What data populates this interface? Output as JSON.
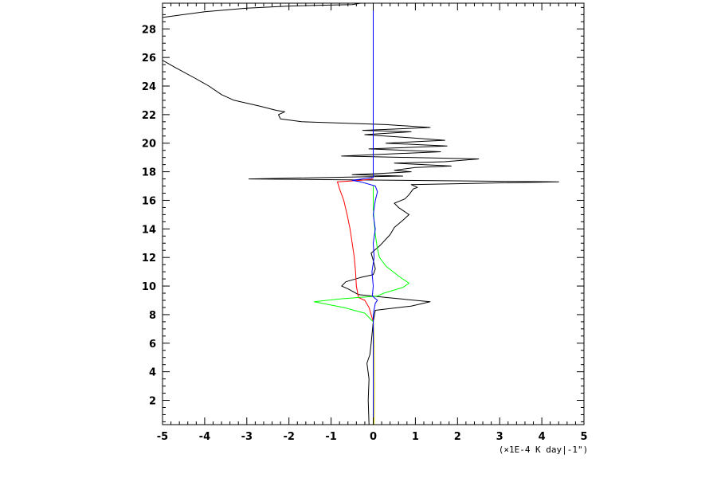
{
  "chart_data": {
    "type": "line",
    "title": "",
    "xlabel": "(×1E-4 K day|-1\")",
    "ylabel": "",
    "xlim": [
      -5,
      5
    ],
    "ylim": [
      0.3,
      29.8
    ],
    "x_ticks": [
      -5,
      -4,
      -3,
      -2,
      -1,
      0,
      1,
      2,
      3,
      4,
      5
    ],
    "y_ticks": [
      2,
      4,
      6,
      8,
      10,
      12,
      14,
      16,
      18,
      20,
      22,
      24,
      26,
      28
    ],
    "grid": false,
    "legend": "none",
    "series": [
      {
        "color": "#000000",
        "points": [
          [
            -0.1,
            0.3
          ],
          [
            -0.12,
            2.0
          ],
          [
            -0.1,
            3.5
          ],
          [
            -0.15,
            4.6
          ],
          [
            -0.08,
            5.2
          ],
          [
            -0.05,
            6.0
          ],
          [
            0.0,
            7.5
          ],
          [
            0.05,
            8.3
          ],
          [
            0.9,
            8.6
          ],
          [
            1.35,
            8.9
          ],
          [
            0.3,
            9.2
          ],
          [
            -0.35,
            9.4
          ],
          [
            -0.6,
            9.8
          ],
          [
            -0.75,
            10.0
          ],
          [
            -0.65,
            10.3
          ],
          [
            -0.3,
            10.6
          ],
          [
            0.0,
            10.8
          ],
          [
            0.05,
            11.2
          ],
          [
            0.0,
            11.8
          ],
          [
            -0.05,
            12.3
          ],
          [
            0.15,
            12.8
          ],
          [
            0.4,
            13.6
          ],
          [
            0.5,
            14.1
          ],
          [
            0.7,
            14.6
          ],
          [
            0.85,
            15.0
          ],
          [
            0.6,
            15.5
          ],
          [
            0.5,
            15.8
          ],
          [
            0.75,
            16.1
          ],
          [
            0.85,
            16.4
          ],
          [
            0.95,
            16.8
          ],
          [
            1.05,
            16.9
          ],
          [
            0.9,
            17.1
          ],
          [
            4.4,
            17.3
          ],
          [
            -2.95,
            17.5
          ],
          [
            0.7,
            17.7
          ],
          [
            -0.5,
            17.8
          ],
          [
            0.3,
            17.9
          ],
          [
            0.9,
            18.0
          ],
          [
            0.5,
            18.1
          ],
          [
            1.0,
            18.3
          ],
          [
            1.85,
            18.4
          ],
          [
            0.5,
            18.6
          ],
          [
            1.7,
            18.7
          ],
          [
            2.5,
            18.9
          ],
          [
            -0.75,
            19.1
          ],
          [
            1.6,
            19.4
          ],
          [
            -0.1,
            19.6
          ],
          [
            1.75,
            19.8
          ],
          [
            0.3,
            20.0
          ],
          [
            1.7,
            20.2
          ],
          [
            0.8,
            20.4
          ],
          [
            -0.2,
            20.6
          ],
          [
            0.9,
            20.8
          ],
          [
            -0.25,
            20.9
          ],
          [
            1.35,
            21.1
          ],
          [
            0.3,
            21.3
          ],
          [
            -1.7,
            21.5
          ],
          [
            -2.2,
            21.7
          ],
          [
            -2.25,
            22.0
          ],
          [
            -2.1,
            22.2
          ],
          [
            -2.3,
            22.3
          ],
          [
            -2.7,
            22.6
          ],
          [
            -3.3,
            23.0
          ],
          [
            -3.6,
            23.4
          ],
          [
            -3.9,
            24.0
          ],
          [
            -4.2,
            24.5
          ],
          [
            -4.7,
            25.3
          ],
          [
            -5.0,
            25.8
          ]
        ]
      },
      {
        "color": "#000000",
        "points": [
          [
            -5.0,
            28.8
          ],
          [
            -4.0,
            29.2
          ],
          [
            -3.0,
            29.45
          ],
          [
            -2.0,
            29.6
          ],
          [
            -0.5,
            29.7
          ],
          [
            -0.3,
            29.8
          ]
        ]
      },
      {
        "color": "#ff0000",
        "points": [
          [
            0.0,
            7.5
          ],
          [
            -0.1,
            8.5
          ],
          [
            -0.2,
            9.0
          ],
          [
            -0.35,
            9.2
          ],
          [
            -0.4,
            10.0
          ],
          [
            -0.42,
            11.0
          ],
          [
            -0.45,
            12.0
          ],
          [
            -0.5,
            13.0
          ],
          [
            -0.55,
            14.0
          ],
          [
            -0.62,
            15.0
          ],
          [
            -0.7,
            16.0
          ],
          [
            -0.8,
            16.8
          ],
          [
            -0.85,
            17.3
          ],
          [
            -0.55,
            17.35
          ],
          [
            -0.3,
            17.4
          ],
          [
            0.0,
            17.5
          ]
        ]
      },
      {
        "color": "#00ff00",
        "points": [
          [
            0.0,
            0.3
          ],
          [
            0.0,
            5.0
          ],
          [
            0.0,
            7.5
          ],
          [
            -0.2,
            8.1
          ],
          [
            -0.7,
            8.5
          ],
          [
            -1.4,
            8.9
          ],
          [
            -0.8,
            9.1
          ],
          [
            0.1,
            9.3
          ],
          [
            0.25,
            9.5
          ],
          [
            0.7,
            9.9
          ],
          [
            0.85,
            10.2
          ],
          [
            0.6,
            10.7
          ],
          [
            0.3,
            11.4
          ],
          [
            0.15,
            12.0
          ],
          [
            0.1,
            12.6
          ],
          [
            0.05,
            13.6
          ],
          [
            0.02,
            14.5
          ],
          [
            0.0,
            15.5
          ],
          [
            0.0,
            17.0
          ]
        ]
      },
      {
        "color": "#c8c800",
        "points": [
          [
            0.02,
            0.3
          ],
          [
            0.03,
            3.0
          ],
          [
            0.02,
            6.0
          ],
          [
            0.0,
            8.0
          ]
        ]
      },
      {
        "color": "#0000ff",
        "points": [
          [
            0.0,
            0.3
          ],
          [
            0.0,
            5.0
          ],
          [
            0.0,
            8.0
          ],
          [
            0.05,
            8.8
          ],
          [
            0.1,
            9.0
          ],
          [
            -0.02,
            9.3
          ],
          [
            0.0,
            10.0
          ],
          [
            -0.03,
            11.0
          ],
          [
            0.02,
            12.0
          ],
          [
            0.0,
            13.0
          ],
          [
            0.05,
            14.0
          ],
          [
            0.0,
            15.0
          ],
          [
            0.05,
            16.0
          ],
          [
            0.1,
            16.6
          ],
          [
            0.05,
            17.0
          ],
          [
            -0.3,
            17.3
          ],
          [
            -0.5,
            17.4
          ],
          [
            0.0,
            17.6
          ],
          [
            0.0,
            29.8
          ]
        ]
      }
    ]
  }
}
